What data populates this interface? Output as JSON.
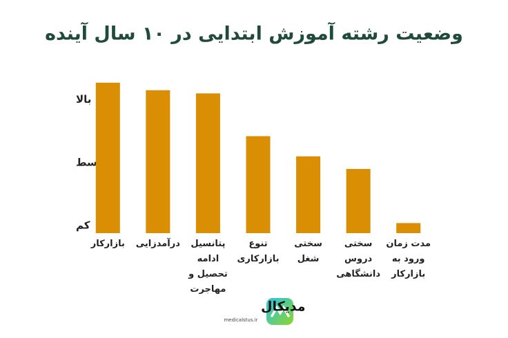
{
  "chart_data": {
    "type": "bar",
    "title": "وضعیت رشته آموزش ابتدایی در ۱۰ سال آینده",
    "categories": [
      "بازارکار",
      "درآمدزایی",
      "پتانسیل ادامه تحصیل و مهاجرت",
      "تنوع بازارکاری",
      "سختی شغل",
      "سختی دروس دانشگاهی",
      "مدت زمان ورود به بازارکار"
    ],
    "values": [
      3.27,
      3.15,
      3.1,
      2.42,
      2.1,
      1.9,
      1.04
    ],
    "color": "#d98e04",
    "ylim": [
      0.88,
      3.4
    ],
    "yticks": [
      {
        "value": 1,
        "label": "کم"
      },
      {
        "value": 2,
        "label": "متوسط"
      },
      {
        "value": 3,
        "label": "بالا"
      }
    ],
    "grid": false
  },
  "logo": {
    "name": "مدیکال",
    "url": "medicalstus.ir"
  }
}
